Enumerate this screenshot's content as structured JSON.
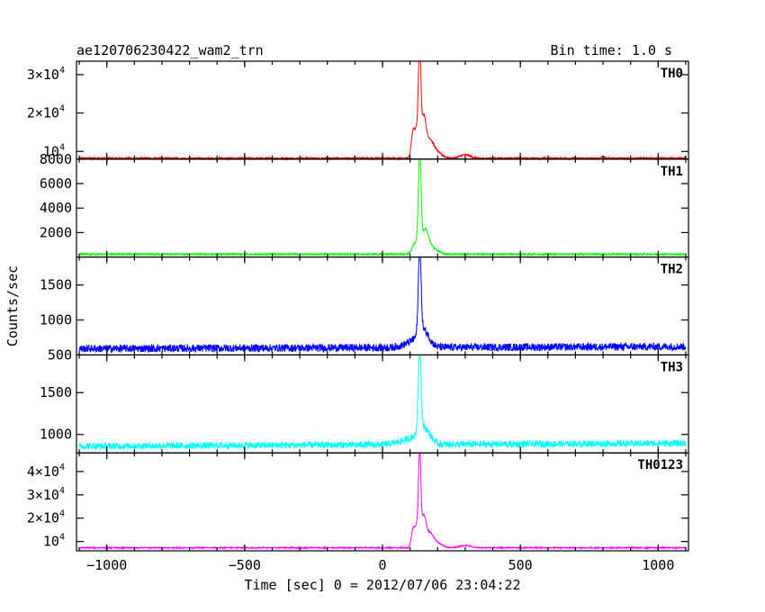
{
  "header": {
    "source": "ae120706230422_wam2_trn",
    "bin_time": "Bin time: 1.0 s"
  },
  "chart_data": {
    "type": "line",
    "xlabel": "Time [sec] 0 = 2012/07/06 23:04:22",
    "ylabel": "Counts/sec",
    "xlim": [
      -1110,
      1110
    ],
    "x_ticks": [
      -1000,
      -500,
      0,
      500,
      1000
    ],
    "x_tick_labels": [
      "−1000",
      "−500",
      "0",
      "500",
      "1000"
    ],
    "panels": [
      {
        "name": "TH0",
        "color": "#ff0000",
        "ylim": [
          8000,
          33500
        ],
        "ticks": [
          {
            "v": 30000,
            "base": "3×10",
            "exp": "4"
          },
          {
            "v": 20000,
            "base": "2×10",
            "exp": "4"
          },
          {
            "v": 10000,
            "base": "10",
            "exp": "4"
          },
          {
            "v": 8000,
            "base": "8000",
            "exp": ""
          }
        ],
        "baseline": 8200,
        "noise": 250,
        "peaks": [
          {
            "x": 135,
            "h": 23500,
            "w": 4
          },
          {
            "x": 128,
            "h": 9000,
            "w": 10
          },
          {
            "x": 150,
            "h": 9000,
            "w": 8
          },
          {
            "x": 110,
            "h": 5500,
            "w": 6
          },
          {
            "x": 170,
            "h": 4200,
            "w": 14
          },
          {
            "x": 195,
            "h": 1600,
            "w": 20
          },
          {
            "x": 300,
            "h": 900,
            "w": 20
          },
          {
            "x": 800,
            "h": 500,
            "w": 5
          }
        ]
      },
      {
        "name": "TH1",
        "color": "#00ff00",
        "ylim": [
          0,
          8000
        ],
        "ticks": [
          {
            "v": 2000,
            "base": "2000",
            "exp": ""
          },
          {
            "v": 4000,
            "base": "4000",
            "exp": ""
          },
          {
            "v": 6000,
            "base": "6000",
            "exp": ""
          }
        ],
        "baseline": 230,
        "noise": 70,
        "peaks": [
          {
            "x": 135,
            "h": 7500,
            "w": 5
          },
          {
            "x": 118,
            "h": 900,
            "w": 10
          },
          {
            "x": 155,
            "h": 1800,
            "w": 12
          },
          {
            "x": 180,
            "h": 500,
            "w": 20
          }
        ]
      },
      {
        "name": "TH2",
        "color": "#0000ff",
        "ylim": [
          500,
          1900
        ],
        "ticks": [
          {
            "v": 500,
            "base": "500",
            "exp": ""
          },
          {
            "v": 1000,
            "base": "1000",
            "exp": ""
          },
          {
            "v": 1500,
            "base": "1500",
            "exp": ""
          }
        ],
        "baseline": 590,
        "slope": 30,
        "noise": 55,
        "peaks": [
          {
            "x": 135,
            "h": 1200,
            "w": 5
          },
          {
            "x": 150,
            "h": 220,
            "w": 20
          },
          {
            "x": 110,
            "h": 80,
            "w": 30
          }
        ]
      },
      {
        "name": "TH3",
        "color": "#00ffff",
        "ylim": [
          780,
          1950
        ],
        "ticks": [
          {
            "v": 1000,
            "base": "1000",
            "exp": ""
          },
          {
            "v": 1500,
            "base": "1500",
            "exp": ""
          }
        ],
        "baseline": 860,
        "slope": 35,
        "noise": 40,
        "peaks": [
          {
            "x": 135,
            "h": 1000,
            "w": 5
          },
          {
            "x": 150,
            "h": 180,
            "w": 22
          },
          {
            "x": 100,
            "h": 60,
            "w": 40
          }
        ]
      },
      {
        "name": "TH0123",
        "color": "#ff00ff",
        "ylim": [
          6000,
          48000
        ],
        "ticks": [
          {
            "v": 10000,
            "base": "10",
            "exp": "4"
          },
          {
            "v": 20000,
            "base": "2×10",
            "exp": "4"
          },
          {
            "v": 30000,
            "base": "3×10",
            "exp": "4"
          },
          {
            "v": 40000,
            "base": "4×10",
            "exp": "4"
          }
        ],
        "baseline": 7300,
        "noise": 250,
        "peaks": [
          {
            "x": 135,
            "h": 33000,
            "w": 4
          },
          {
            "x": 128,
            "h": 11000,
            "w": 10
          },
          {
            "x": 150,
            "h": 11000,
            "w": 8
          },
          {
            "x": 110,
            "h": 6000,
            "w": 6
          },
          {
            "x": 170,
            "h": 5500,
            "w": 14
          },
          {
            "x": 195,
            "h": 2000,
            "w": 20
          },
          {
            "x": 300,
            "h": 1000,
            "w": 20
          }
        ]
      }
    ]
  }
}
